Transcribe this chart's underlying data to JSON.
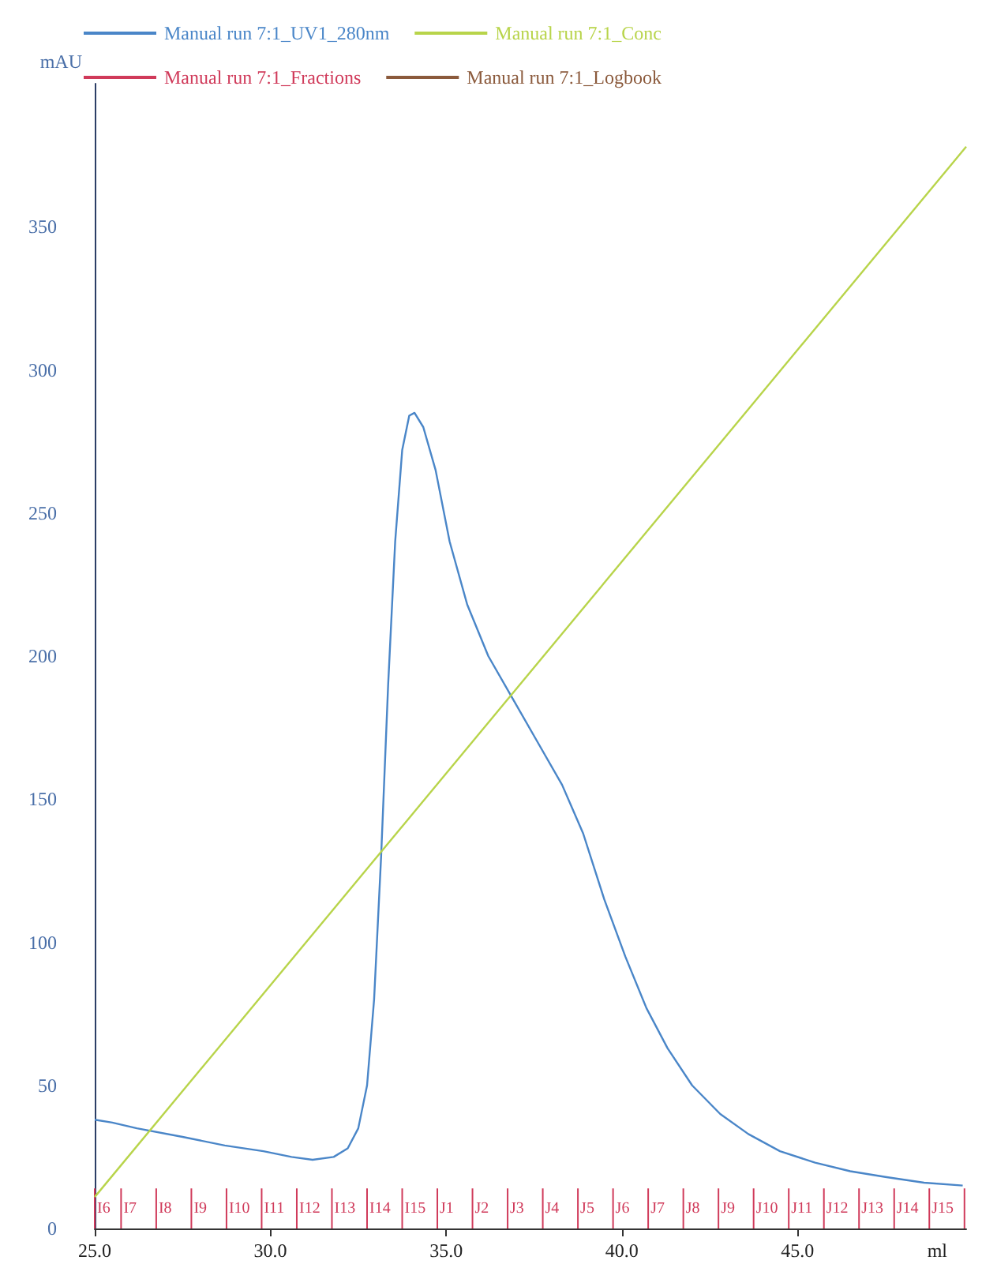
{
  "chart_data": {
    "type": "line",
    "ylabel": "mAU",
    "xlabel": "ml",
    "xlim": [
      25,
      49.8
    ],
    "xticks": [
      {
        "value": 25,
        "label": "25.0"
      },
      {
        "value": 30,
        "label": "30.0"
      },
      {
        "value": 35,
        "label": "35.0"
      },
      {
        "value": 40,
        "label": "40.0"
      },
      {
        "value": 45,
        "label": "45.0"
      }
    ],
    "ylim": [
      0,
      400
    ],
    "yticks": [
      0,
      50,
      100,
      150,
      200,
      250,
      300,
      350
    ],
    "grid": false,
    "legend": "top left",
    "series": [
      {
        "name": "Manual run 7:1_UV1_280nm",
        "color": "#4a86c8",
        "x": [
          25.0,
          25.5,
          26.2,
          27.5,
          28.7,
          29.8,
          30.6,
          31.2,
          31.8,
          32.2,
          32.5,
          32.75,
          32.95,
          33.15,
          33.35,
          33.55,
          33.75,
          33.95,
          34.1,
          34.35,
          34.7,
          35.1,
          35.6,
          36.2,
          36.9,
          37.6,
          38.3,
          38.9,
          39.5,
          40.1,
          40.7,
          41.3,
          42.0,
          42.8,
          43.6,
          44.5,
          45.5,
          46.5,
          47.5,
          48.6,
          49.7
        ],
        "values": [
          38,
          37,
          35,
          32,
          29,
          27,
          25,
          24,
          25,
          28,
          35,
          50,
          80,
          130,
          190,
          240,
          272,
          284,
          285,
          280,
          265,
          240,
          218,
          200,
          185,
          170,
          155,
          138,
          115,
          95,
          77,
          63,
          50,
          40,
          33,
          27,
          23,
          20,
          18,
          16,
          15
        ]
      },
      {
        "name": "Manual run 7:1_Conc",
        "color": "#b8d44a",
        "x": [
          25,
          49.8
        ],
        "values": [
          11,
          378
        ]
      },
      {
        "name": "Manual run 7:1_Fractions",
        "color": "#d03a5a",
        "type": "bar",
        "x": [
          25,
          25.75,
          26.75,
          27.75,
          28.75,
          29.75,
          30.75,
          31.75,
          32.75,
          33.75,
          34.75,
          35.75,
          36.75,
          37.75,
          38.75,
          39.75,
          40.75,
          41.75,
          42.75,
          43.75,
          44.75,
          45.75,
          46.75,
          47.75,
          48.75,
          49.75
        ],
        "values": [
          14,
          14,
          14,
          14,
          14,
          14,
          14,
          14,
          14,
          14,
          14,
          14,
          14,
          14,
          14,
          14,
          14,
          14,
          14,
          14,
          14,
          14,
          14,
          14,
          14,
          14
        ],
        "value_labels": [
          "I6",
          "I7",
          "I8",
          "I9",
          "I10",
          "I11",
          "I12",
          "I13",
          "I14",
          "I15",
          "J1",
          "J2",
          "J3",
          "J4",
          "J5",
          "J6",
          "J7",
          "J8",
          "J9",
          "J10",
          "J11",
          "J12",
          "J13",
          "J14",
          "J15",
          null
        ]
      },
      {
        "name": "Manual run 7:1_Logbook",
        "color": "#8b5a3c"
      }
    ]
  }
}
